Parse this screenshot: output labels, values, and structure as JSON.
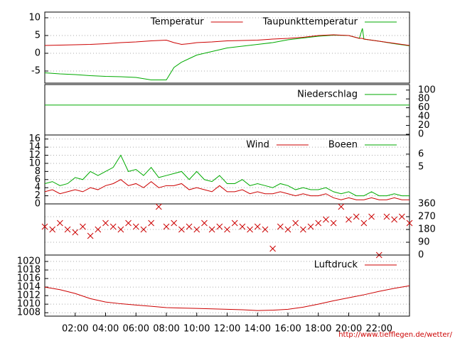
{
  "chart_data": [
    {
      "type": "line",
      "yaxis": "left",
      "grid": true,
      "x": [
        0,
        1,
        2,
        3,
        4,
        5,
        6,
        7,
        8,
        8.5,
        9,
        9.5,
        10,
        11,
        12,
        13,
        14,
        15,
        16,
        17,
        18,
        19,
        20,
        20.7,
        20.9,
        21,
        22,
        23,
        24
      ],
      "series": [
        {
          "name": "Temperatur",
          "color": "#cc0000",
          "values": [
            2.2,
            2.3,
            2.4,
            2.5,
            2.7,
            3,
            3.2,
            3.5,
            3.7,
            3,
            2.5,
            2.7,
            3,
            3.2,
            3.5,
            3.6,
            3.7,
            4,
            4.2,
            4.5,
            5,
            5.2,
            5,
            4.2,
            4.2,
            4,
            3.4,
            2.8,
            2.2
          ]
        },
        {
          "name": "Taupunkttemperatur",
          "color": "#00aa00",
          "values": [
            -5.5,
            -5.8,
            -6,
            -6.3,
            -6.5,
            -6.6,
            -6.8,
            -7.5,
            -7.5,
            -4,
            -2.5,
            -1.5,
            -0.5,
            0.5,
            1.5,
            2,
            2.5,
            3,
            3.8,
            4.3,
            4.8,
            5.1,
            5,
            4.2,
            7,
            4,
            3.4,
            2.7,
            2.1
          ]
        }
      ],
      "ylim": [
        -8.4,
        11.6
      ],
      "yticks": [
        -5,
        0,
        5,
        10
      ],
      "xlim": [
        0,
        24
      ]
    },
    {
      "type": "line",
      "yaxis": "right",
      "grid": false,
      "x": [
        0,
        24
      ],
      "series": [
        {
          "name": "Niederschlag",
          "color": "#00aa00",
          "values": [
            66,
            66
          ]
        }
      ],
      "ylim": [
        -1.6,
        112.5
      ],
      "yticks": [
        0,
        20,
        40,
        60,
        80,
        100
      ],
      "xlim": [
        0,
        24
      ]
    },
    {
      "type": "line",
      "yaxis": "left",
      "grid": true,
      "x": [
        0,
        0.5,
        1,
        1.5,
        2,
        2.5,
        3,
        3.5,
        4,
        4.5,
        5,
        5.5,
        6,
        6.5,
        7,
        7.5,
        8,
        8.5,
        9,
        9.5,
        10,
        10.5,
        11,
        11.5,
        12,
        12.5,
        13,
        13.5,
        14,
        14.5,
        15,
        15.5,
        16,
        16.5,
        17,
        17.5,
        18,
        18.5,
        19,
        19.5,
        20,
        20.5,
        21,
        21.5,
        22,
        22.5,
        23,
        23.5,
        24
      ],
      "series": [
        {
          "name": "Wind",
          "color": "#cc0000",
          "values": [
            3,
            3.5,
            2.5,
            3,
            3.5,
            3,
            4,
            3.5,
            4.5,
            5,
            6,
            4.5,
            5,
            4,
            5.5,
            4,
            4.5,
            4.5,
            5,
            3.5,
            4,
            3.5,
            3,
            4.5,
            3,
            3,
            3.5,
            2.5,
            3,
            2.5,
            2.5,
            3,
            2.5,
            2,
            2.5,
            2,
            2,
            2.5,
            1.5,
            1,
            1.5,
            1,
            1,
            1.5,
            1,
            1,
            1.5,
            1,
            1
          ]
        },
        {
          "name": "Boeen",
          "color": "#00aa00",
          "values": [
            5,
            5.5,
            4.5,
            5,
            6.5,
            6,
            8,
            7,
            8,
            9,
            12,
            8,
            8.5,
            7,
            9,
            6.5,
            7,
            7.5,
            8,
            6,
            8,
            6,
            5.5,
            7,
            5,
            5,
            6,
            4.5,
            5,
            4.5,
            4,
            5,
            4.5,
            3.5,
            4,
            3.5,
            3.5,
            4,
            3,
            2.5,
            3,
            2,
            2,
            3,
            2,
            2,
            2.5,
            2,
            2
          ]
        }
      ],
      "ylim": [
        0,
        17
      ],
      "yticks": [
        0,
        2,
        4,
        6,
        8,
        10,
        12,
        14,
        16
      ],
      "y2lim": [
        2.1,
        7.5
      ],
      "y2ticks": [
        5,
        6
      ],
      "xlim": [
        0,
        24
      ]
    },
    {
      "type": "scatter",
      "yaxis": "right",
      "grid": true,
      "color": "#cc0000",
      "x": [
        0,
        0.5,
        1,
        1.5,
        2,
        2.5,
        3,
        3.5,
        4,
        4.5,
        5,
        5.5,
        6,
        6.5,
        7,
        7.5,
        8,
        8.5,
        9,
        9.5,
        10,
        10.5,
        11,
        11.5,
        12,
        12.5,
        13,
        13.5,
        14,
        14.5,
        15,
        15.5,
        16,
        16.5,
        17,
        17.5,
        18,
        18.5,
        19,
        19.5,
        20,
        20.5,
        21,
        21.5,
        22,
        22.5,
        23,
        23.5,
        24
      ],
      "values": [
        200,
        180,
        225,
        180,
        160,
        200,
        135,
        180,
        225,
        200,
        180,
        225,
        200,
        180,
        225,
        340,
        200,
        225,
        180,
        200,
        180,
        225,
        180,
        200,
        180,
        225,
        200,
        180,
        200,
        180,
        45,
        200,
        180,
        225,
        180,
        200,
        225,
        250,
        225,
        340,
        250,
        270,
        225,
        270,
        0,
        270,
        250,
        270,
        225
      ],
      "ylim": [
        0,
        360
      ],
      "yticks": [
        0,
        90,
        180,
        270,
        360
      ],
      "xlim": [
        0,
        24
      ]
    },
    {
      "type": "line",
      "yaxis": "left",
      "grid": true,
      "x": [
        0,
        1,
        2,
        3,
        4,
        5,
        6,
        7,
        8,
        9,
        10,
        11,
        12,
        13,
        14,
        15,
        16,
        17,
        18,
        19,
        20,
        21,
        22,
        23,
        24
      ],
      "series": [
        {
          "name": "Luftdruck",
          "color": "#cc0000",
          "values": [
            1014,
            1013.4,
            1012.5,
            1011.3,
            1010.5,
            1010.1,
            1009.8,
            1009.5,
            1009.2,
            1009.1,
            1009,
            1008.9,
            1008.8,
            1008.7,
            1008.5,
            1008.6,
            1008.8,
            1009.3,
            1010,
            1010.8,
            1011.5,
            1012.2,
            1013,
            1013.7,
            1014.3
          ]
        }
      ],
      "ylim": [
        1007.2,
        1021.5
      ],
      "yticks": [
        1008,
        1010,
        1012,
        1014,
        1016,
        1018,
        1020
      ],
      "xlim": [
        0,
        24
      ],
      "xticks": [
        {
          "value": 2,
          "label": "02:00"
        },
        {
          "value": 4,
          "label": "04:00"
        },
        {
          "value": 6,
          "label": "06:00"
        },
        {
          "value": 8,
          "label": "08:00"
        },
        {
          "value": 10,
          "label": "10:00"
        },
        {
          "value": 12,
          "label": "12:00"
        },
        {
          "value": 14,
          "label": "14:00"
        },
        {
          "value": 16,
          "label": "16:00"
        },
        {
          "value": 18,
          "label": "18:00"
        },
        {
          "value": 20,
          "label": "20:00"
        },
        {
          "value": 22,
          "label": "22:00"
        }
      ]
    }
  ],
  "footer": "http://www.tiefflegen.de/wetter/"
}
